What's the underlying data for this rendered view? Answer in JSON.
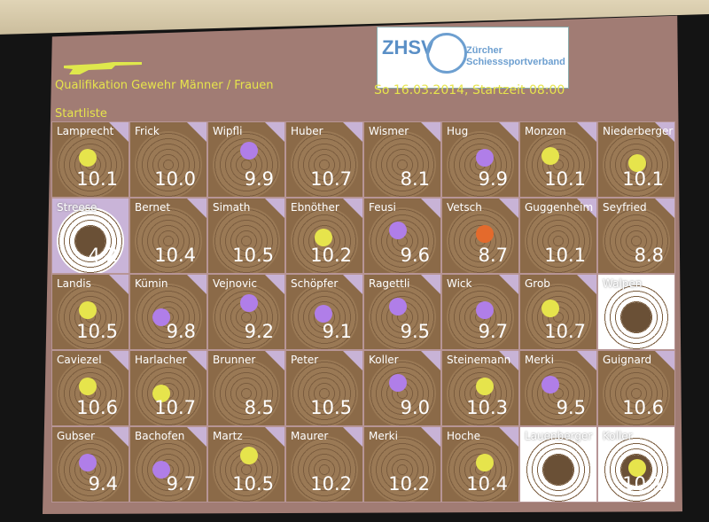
{
  "header": {
    "title": "Qualifikation Gewehr Männer / Frauen",
    "subtitle": "Startliste",
    "datetime": "So 16.03.2014, Startzeit 08:00",
    "logo_abbr": "ZHSV",
    "logo_line1": "Zürcher",
    "logo_line2": "Schiesssportverband"
  },
  "colors": {
    "yellow_dot": "#e6e44c",
    "purple_dot": "#b07ee8",
    "orange_dot": "#e46a2c"
  },
  "rows": [
    [
      {
        "name": "Lamprecht",
        "score": "10.1",
        "dot": "yellow"
      },
      {
        "name": "Frick",
        "score": "10.0",
        "dot": "none"
      },
      {
        "name": "Wipfli",
        "score": "9.9",
        "dot": "purple"
      },
      {
        "name": "Huber",
        "score": "10.7",
        "dot": "none"
      },
      {
        "name": "Wismer",
        "score": "8.1",
        "dot": "none"
      },
      {
        "name": "Hug",
        "score": "9.9",
        "dot": "purple"
      },
      {
        "name": "Monzon",
        "score": "10.1",
        "dot": "yellow"
      },
      {
        "name": "Niederberger",
        "score": "10.1",
        "dot": "yellow"
      }
    ],
    [
      {
        "name": "Streese",
        "score": "4.2",
        "dot": "none",
        "style": "hl"
      },
      {
        "name": "Bernet",
        "score": "10.4",
        "dot": "none"
      },
      {
        "name": "Simath",
        "score": "10.5",
        "dot": "none"
      },
      {
        "name": "Ebnöther",
        "score": "10.2",
        "dot": "yellow"
      },
      {
        "name": "Feusi",
        "score": "9.6",
        "dot": "purple"
      },
      {
        "name": "Vetsch",
        "score": "8.7",
        "dot": "orange"
      },
      {
        "name": "Guggenheim",
        "score": "10.1",
        "dot": "none"
      },
      {
        "name": "Seyfried",
        "score": "8.8",
        "dot": "none"
      }
    ],
    [
      {
        "name": "Landis",
        "score": "10.5",
        "dot": "yellow"
      },
      {
        "name": "Kümin",
        "score": "9.8",
        "dot": "purple"
      },
      {
        "name": "Vejnovic",
        "score": "9.2",
        "dot": "purple"
      },
      {
        "name": "Schöpfer",
        "score": "9.1",
        "dot": "purple"
      },
      {
        "name": "Ragettli",
        "score": "9.5",
        "dot": "purple"
      },
      {
        "name": "Wick",
        "score": "9.7",
        "dot": "purple"
      },
      {
        "name": "Grob",
        "score": "10.7",
        "dot": "yellow"
      },
      {
        "name": "Walpen",
        "score": "",
        "dot": "none",
        "style": "blank"
      }
    ],
    [
      {
        "name": "Caviezel",
        "score": "10.6",
        "dot": "yellow"
      },
      {
        "name": "Harlacher",
        "score": "10.7",
        "dot": "yellow"
      },
      {
        "name": "Brunner",
        "score": "8.5",
        "dot": "none"
      },
      {
        "name": "Peter",
        "score": "10.5",
        "dot": "none"
      },
      {
        "name": "Koller",
        "score": "9.0",
        "dot": "purple"
      },
      {
        "name": "Steinemann",
        "score": "10.3",
        "dot": "yellow"
      },
      {
        "name": "Merki",
        "score": "9.5",
        "dot": "purple"
      },
      {
        "name": "Guignard",
        "score": "10.6",
        "dot": "none"
      }
    ],
    [
      {
        "name": "Gubser",
        "score": "9.4",
        "dot": "purple"
      },
      {
        "name": "Bachofen",
        "score": "9.7",
        "dot": "purple"
      },
      {
        "name": "Martz",
        "score": "10.5",
        "dot": "yellow"
      },
      {
        "name": "Maurer",
        "score": "10.2",
        "dot": "none"
      },
      {
        "name": "Merki",
        "score": "10.2",
        "dot": "none"
      },
      {
        "name": "Hoche",
        "score": "10.4",
        "dot": "yellow"
      },
      {
        "name": "Lauenberger",
        "score": "",
        "dot": "none",
        "style": "blank"
      },
      {
        "name": "Koller",
        "score": "10.1",
        "dot": "yellow",
        "style": "blank"
      }
    ]
  ]
}
